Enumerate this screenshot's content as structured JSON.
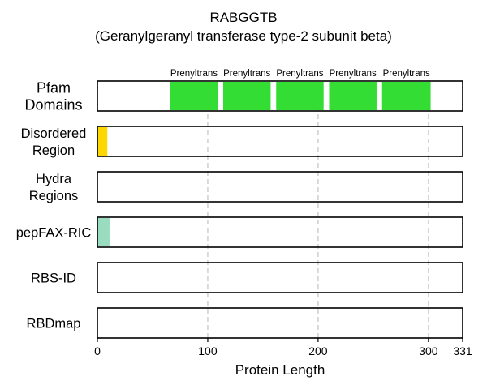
{
  "chart_data": {
    "type": "bar",
    "title": "RABGGTB",
    "subtitle": "(Geranylgeranyl transferase type-2 subunit beta)",
    "xlabel": "Protein Length",
    "ylabel": "",
    "xlim": [
      0,
      331
    ],
    "x_ticks": [
      0,
      100,
      200,
      300,
      331
    ],
    "grid": "vertical dashed at 100, 200, 300",
    "tracks": [
      {
        "label": "Pfam\nDomains",
        "segments": [
          {
            "name": "Prenyltrans",
            "start": 66,
            "end": 109,
            "color": "#33dd33"
          },
          {
            "name": "Prenyltrans",
            "start": 114,
            "end": 157,
            "color": "#33dd33"
          },
          {
            "name": "Prenyltrans",
            "start": 162,
            "end": 205,
            "color": "#33dd33"
          },
          {
            "name": "Prenyltrans",
            "start": 210,
            "end": 253,
            "color": "#33dd33"
          },
          {
            "name": "Prenyltrans",
            "start": 258,
            "end": 302,
            "color": "#33dd33"
          }
        ]
      },
      {
        "label": "Disordered\nRegion",
        "segments": [
          {
            "name": "",
            "start": 0,
            "end": 9,
            "color": "#ffd700"
          }
        ]
      },
      {
        "label": "Hydra\nRegions",
        "segments": []
      },
      {
        "label": "pepFAX-RIC",
        "segments": [
          {
            "name": "",
            "start": 0,
            "end": 11,
            "color": "#99dcc0"
          }
        ]
      },
      {
        "label": "RBS-ID",
        "segments": []
      },
      {
        "label": "RBDmap",
        "segments": []
      }
    ]
  }
}
